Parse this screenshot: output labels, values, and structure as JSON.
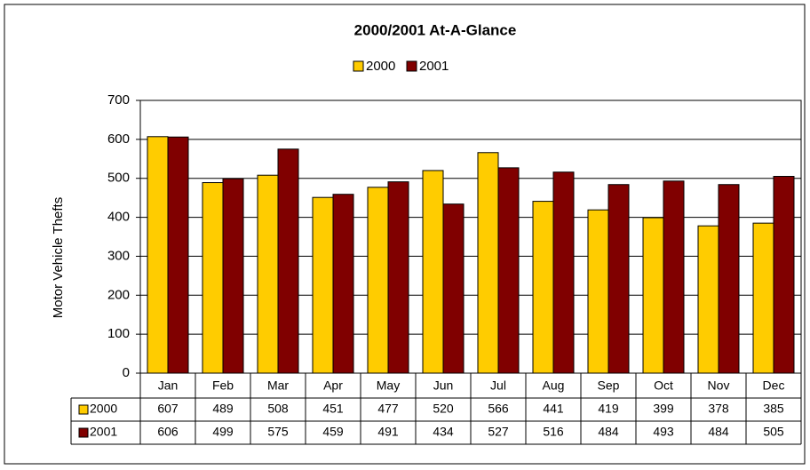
{
  "chart_data": {
    "type": "bar",
    "title": "2000/2001 At-A-Glance",
    "y_label": "Motor Vehicle Thefts",
    "categories": [
      "Jan",
      "Feb",
      "Mar",
      "Apr",
      "May",
      "Jun",
      "Jul",
      "Aug",
      "Sep",
      "Oct",
      "Nov",
      "Dec"
    ],
    "series": [
      {
        "name": "2000",
        "color": "#ffcc00",
        "values": [
          607,
          489,
          508,
          451,
          477,
          520,
          566,
          441,
          419,
          399,
          378,
          385
        ]
      },
      {
        "name": "2001",
        "color": "#800000",
        "values": [
          606,
          499,
          575,
          459,
          491,
          434,
          527,
          516,
          484,
          493,
          484,
          505
        ]
      }
    ],
    "ylim": [
      0,
      700
    ],
    "yticks": [
      0,
      100,
      200,
      300,
      400,
      500,
      600,
      700
    ],
    "grid": true,
    "legend": "top"
  }
}
